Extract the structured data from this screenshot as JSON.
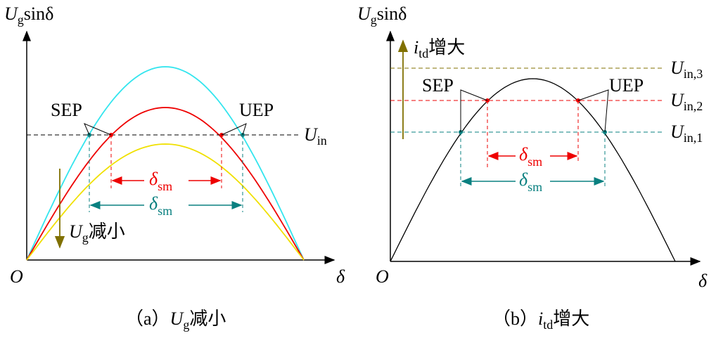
{
  "panels": [
    {
      "y_axis_label": {
        "main": "U",
        "sub": "g",
        "rest": "sinδ"
      },
      "origin": "O",
      "x_axis_label": "δ",
      "sep": "SEP",
      "uep": "UEP",
      "line_label": {
        "main": "U",
        "sub": "in"
      },
      "delta_inner": {
        "main": "δ",
        "sub": "sm"
      },
      "delta_outer": {
        "main": "δ",
        "sub": "sm"
      },
      "arrow_label": {
        "main": "U",
        "sub": "g",
        "rest": "减小"
      },
      "caption": {
        "prefix": "（a）",
        "main": "U",
        "sub": "g",
        "rest": "减小"
      }
    },
    {
      "y_axis_label": {
        "main": "U",
        "sub": "g",
        "rest": "sinδ"
      },
      "origin": "O",
      "x_axis_label": "δ",
      "sep": "SEP",
      "uep": "UEP",
      "line_labels": [
        {
          "main": "U",
          "sub": "in,3"
        },
        {
          "main": "U",
          "sub": "in,2"
        },
        {
          "main": "U",
          "sub": "in,1"
        }
      ],
      "delta_inner": {
        "main": "δ",
        "sub": "sm"
      },
      "delta_outer": {
        "main": "δ",
        "sub": "sm"
      },
      "arrow_label": {
        "main": "i",
        "sub": "td",
        "rest": "增大"
      },
      "caption": {
        "prefix": "（b）",
        "main": "i",
        "sub": "td",
        "rest": "增大"
      }
    }
  ]
}
